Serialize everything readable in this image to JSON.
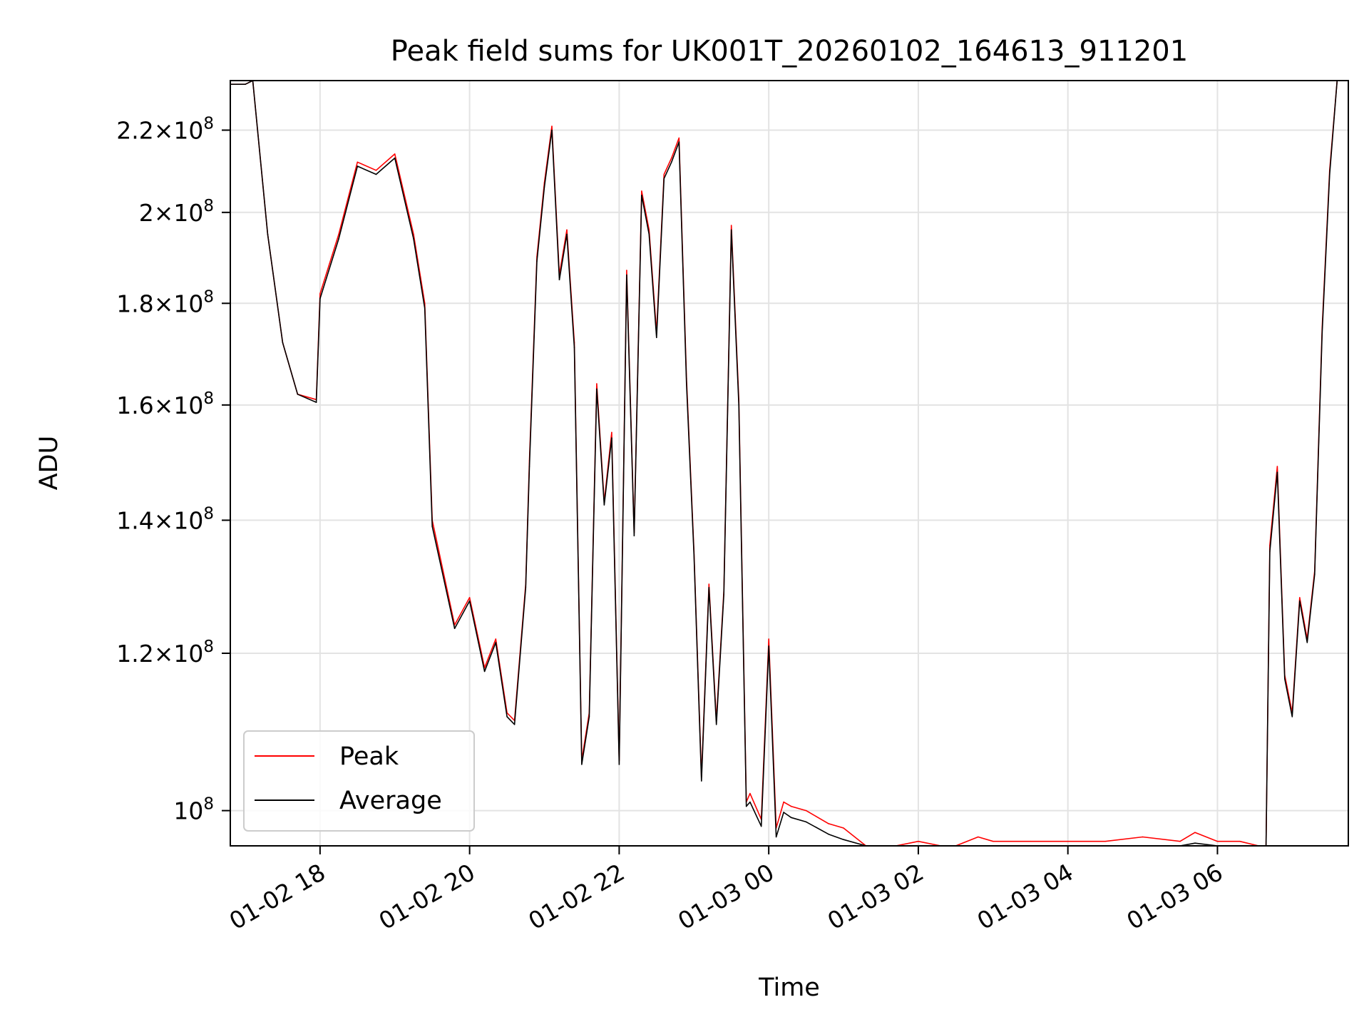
{
  "chart_data": {
    "type": "line",
    "title": "Peak field sums for UK001T_20260102_164613_911201",
    "xlabel": "Time",
    "ylabel": "ADU",
    "y_scale": "log",
    "x_unit": "hours since 2026-01-02 00:00",
    "xlim": [
      16.8,
      31.75
    ],
    "ylim": [
      96000000,
      233000000
    ],
    "grid": true,
    "legend_position": "lower-left",
    "x_ticks": [
      {
        "value": 18,
        "label": "01-02 18"
      },
      {
        "value": 20,
        "label": "01-02 20"
      },
      {
        "value": 22,
        "label": "01-02 22"
      },
      {
        "value": 24,
        "label": "01-03 00"
      },
      {
        "value": 26,
        "label": "01-03 02"
      },
      {
        "value": 28,
        "label": "01-03 04"
      },
      {
        "value": 30,
        "label": "01-03 06"
      }
    ],
    "y_ticks": [
      {
        "value": 100000000,
        "mantissa": "",
        "exponent": "8"
      },
      {
        "value": 120000000,
        "mantissa": "1.2",
        "exponent": "8"
      },
      {
        "value": 140000000,
        "mantissa": "1.4",
        "exponent": "8"
      },
      {
        "value": 160000000,
        "mantissa": "1.6",
        "exponent": "8"
      },
      {
        "value": 180000000,
        "mantissa": "1.8",
        "exponent": "8"
      },
      {
        "value": 200000000,
        "mantissa": "2",
        "exponent": "8"
      },
      {
        "value": 220000000,
        "mantissa": "2.2",
        "exponent": "8"
      }
    ],
    "series": [
      {
        "name": "Peak",
        "color": "#ff0000",
        "x": [
          16.8,
          17.0,
          17.1,
          17.3,
          17.5,
          17.7,
          17.95,
          18.0,
          18.25,
          18.5,
          18.75,
          19.0,
          19.25,
          19.4,
          19.5,
          19.8,
          20.0,
          20.2,
          20.35,
          20.5,
          20.6,
          20.75,
          20.8,
          20.9,
          21.0,
          21.1,
          21.2,
          21.3,
          21.4,
          21.5,
          21.6,
          21.7,
          21.8,
          21.9,
          22.0,
          22.1,
          22.2,
          22.3,
          22.4,
          22.5,
          22.6,
          22.7,
          22.8,
          22.9,
          23.0,
          23.1,
          23.2,
          23.3,
          23.4,
          23.5,
          23.6,
          23.7,
          23.75,
          23.9,
          24.0,
          24.1,
          24.2,
          24.3,
          24.5,
          24.8,
          25.0,
          25.3,
          25.5,
          25.7,
          26.0,
          26.3,
          26.5,
          26.8,
          27.0,
          27.5,
          28.0,
          28.5,
          29.0,
          29.5,
          29.7,
          30.0,
          30.3,
          30.55,
          30.65,
          30.7,
          30.8,
          30.9,
          31.0,
          31.1,
          31.2,
          31.3,
          31.4,
          31.5,
          31.6,
          31.75
        ],
        "values": [
          232000000,
          232000000,
          233000000,
          195000000,
          172000000,
          162000000,
          161000000,
          182000000,
          195000000,
          212000000,
          210000000,
          214000000,
          195000000,
          180000000,
          140000000,
          124000000,
          128000000,
          118000000,
          122000000,
          112000000,
          111000000,
          130000000,
          150000000,
          190000000,
          207000000,
          221000000,
          186000000,
          196000000,
          172000000,
          106000000,
          112000000,
          164000000,
          143000000,
          155000000,
          106000000,
          187000000,
          138000000,
          205000000,
          196000000,
          174000000,
          209000000,
          213000000,
          218000000,
          165000000,
          135000000,
          104000000,
          130000000,
          111000000,
          129000000,
          197000000,
          161000000,
          101000000,
          102000000,
          99000000,
          122000000,
          98000000,
          101000000,
          100500000,
          100000000,
          98500000,
          98000000,
          95000000,
          95000000,
          93500000,
          96500000,
          94500000,
          96000000,
          97000000,
          96500000,
          96500000,
          96500000,
          96500000,
          97000000,
          96500000,
          97500000,
          96500000,
          96500000,
          94000000,
          91500000,
          136000000,
          149000000,
          117000000,
          112000000,
          128000000,
          122000000,
          132000000,
          175000000,
          210000000,
          233000000,
          233000000
        ]
      },
      {
        "name": "Average",
        "color": "#000000",
        "x": [
          16.8,
          17.0,
          17.1,
          17.3,
          17.5,
          17.7,
          17.95,
          18.0,
          18.25,
          18.5,
          18.75,
          19.0,
          19.25,
          19.4,
          19.5,
          19.8,
          20.0,
          20.2,
          20.35,
          20.5,
          20.6,
          20.75,
          20.8,
          20.9,
          21.0,
          21.1,
          21.2,
          21.3,
          21.4,
          21.5,
          21.6,
          21.7,
          21.8,
          21.9,
          22.0,
          22.1,
          22.2,
          22.3,
          22.4,
          22.5,
          22.6,
          22.7,
          22.8,
          22.9,
          23.0,
          23.1,
          23.2,
          23.3,
          23.4,
          23.5,
          23.6,
          23.7,
          23.75,
          23.9,
          24.0,
          24.1,
          24.2,
          24.3,
          24.5,
          24.8,
          25.0,
          25.3,
          25.5,
          25.7,
          26.0,
          26.3,
          26.5,
          26.8,
          27.0,
          27.5,
          28.0,
          28.5,
          29.0,
          29.5,
          29.7,
          30.0,
          30.3,
          30.55,
          30.65,
          30.7,
          30.8,
          30.9,
          31.0,
          31.1,
          31.2,
          31.3,
          31.4,
          31.5,
          31.6,
          31.75
        ],
        "values": [
          232000000,
          232000000,
          233000000,
          195000000,
          172000000,
          162000000,
          160500000,
          181000000,
          194000000,
          211000000,
          209000000,
          213000000,
          194000000,
          179000000,
          139000000,
          123500000,
          127500000,
          117500000,
          121500000,
          111500000,
          110500000,
          129500000,
          149000000,
          189000000,
          206000000,
          220000000,
          185000000,
          195000000,
          171000000,
          105500000,
          111500000,
          163000000,
          142500000,
          154000000,
          105500000,
          186000000,
          137500000,
          204000000,
          195000000,
          173000000,
          208000000,
          212000000,
          217000000,
          164000000,
          134500000,
          103500000,
          129500000,
          110500000,
          128500000,
          196000000,
          160000000,
          100500000,
          101000000,
          98200000,
          121000000,
          97000000,
          99800000,
          99200000,
          98700000,
          97300000,
          96700000,
          93800000,
          93800000,
          92400000,
          95300000,
          93300000,
          94800000,
          95800000,
          95300000,
          95300000,
          95300000,
          95300000,
          95800000,
          95300000,
          96300000,
          95300000,
          95300000,
          92800000,
          91000000,
          135000000,
          148000000,
          116500000,
          111500000,
          127500000,
          121500000,
          131500000,
          174000000,
          209000000,
          233000000,
          233000000
        ]
      }
    ]
  }
}
